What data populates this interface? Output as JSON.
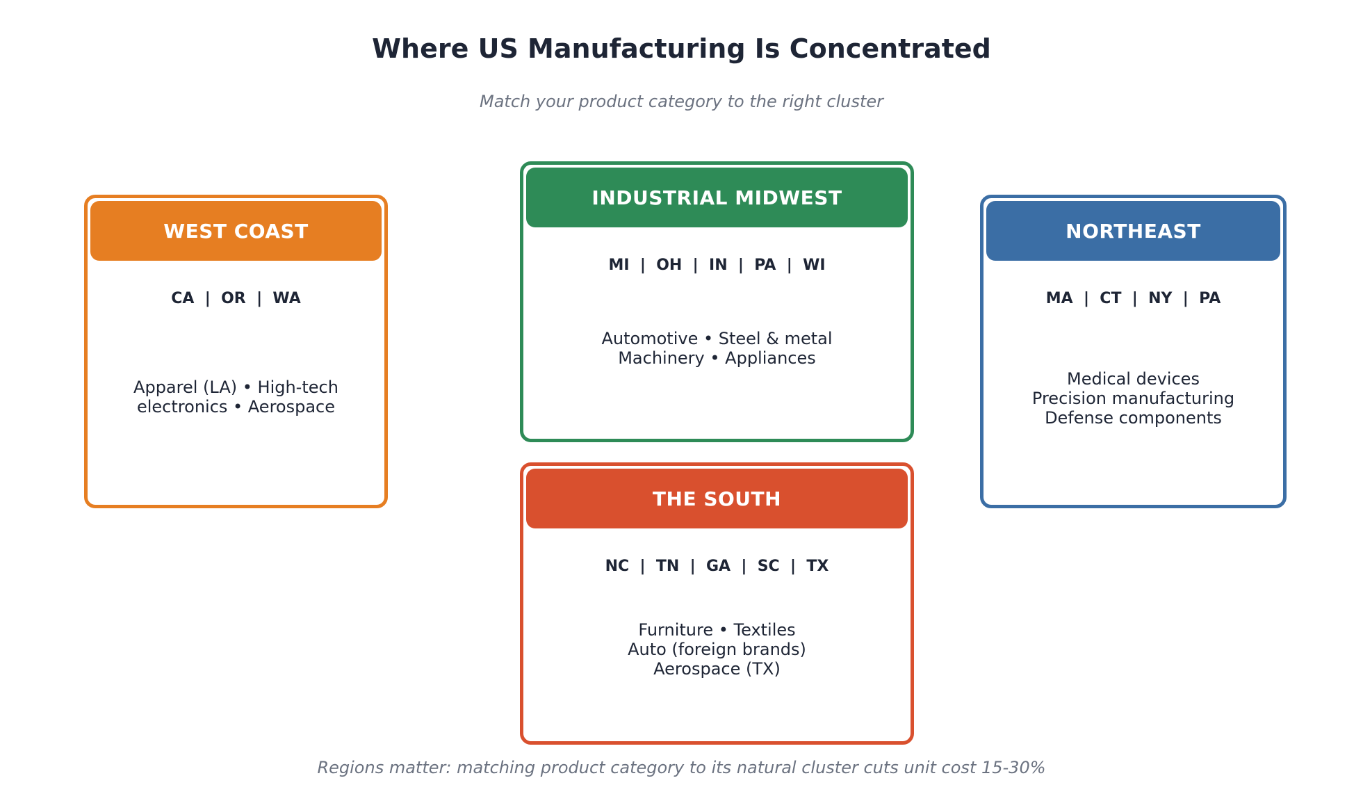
{
  "title": "Where US Manufacturing Is Concentrated",
  "subtitle": "Match your product category to the right cluster",
  "footer": "Regions matter: matching product category to its natural cluster cuts unit cost 15-30%",
  "colors": {
    "west_coast": "#e67e22",
    "industrial_midwest": "#2e8b57",
    "northeast": "#3b6ea5",
    "the_south": "#d9502e",
    "text_dark": "#1e2535",
    "text_muted": "#6b7280"
  },
  "regions": {
    "west_coast": {
      "name": "WEST COAST",
      "states": "CA  |  OR  |  WA",
      "industries": [
        "Apparel (LA) • High-tech",
        "electronics • Aerospace"
      ]
    },
    "industrial_midwest": {
      "name": "INDUSTRIAL MIDWEST",
      "states": "MI  |  OH  |  IN  |  PA  |  WI",
      "industries": [
        "Automotive • Steel & metal",
        "Machinery • Appliances"
      ]
    },
    "northeast": {
      "name": "NORTHEAST",
      "states": "MA  |  CT  |  NY  |  PA",
      "industries": [
        "Medical devices",
        "Precision manufacturing",
        "Defense components"
      ]
    },
    "the_south": {
      "name": "THE SOUTH",
      "states": "NC  |  TN  |  GA  |  SC  |  TX",
      "industries": [
        "Furniture • Textiles",
        "Auto (foreign brands)",
        "Aerospace (TX)"
      ]
    }
  }
}
